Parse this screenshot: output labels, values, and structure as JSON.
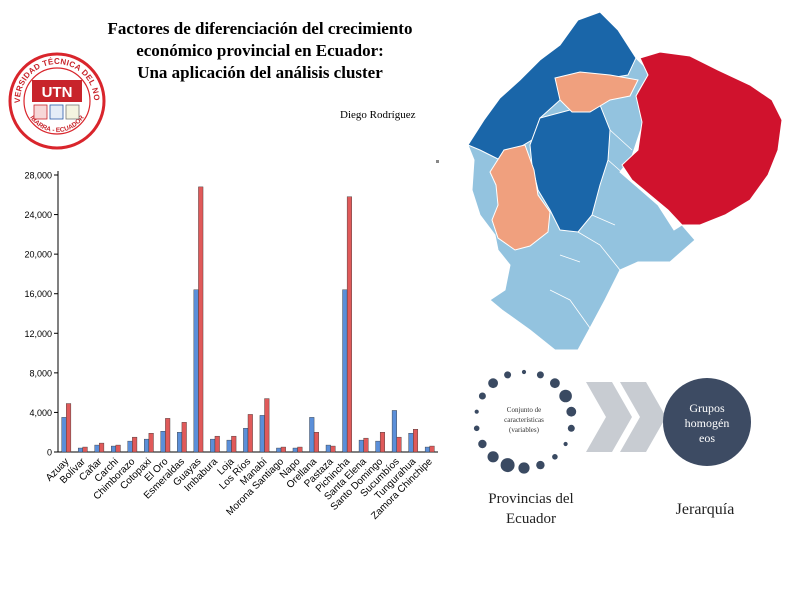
{
  "poster": {
    "title_lines": [
      "Factores de diferenciación del crecimiento",
      "económico provincial en Ecuador:",
      "Una aplicación del análisis cluster"
    ],
    "author": "Diego Rodríguez"
  },
  "logo": {
    "top_text": "UNIVERSIDAD TÉCNICA DEL NORTE",
    "badge": "UTN",
    "bottom_text": "IBARRA - ECUADOR",
    "colors": {
      "red": "#c8242b",
      "ring": "#d9252c"
    }
  },
  "chart_data": {
    "type": "bar",
    "categories": [
      "Azuay",
      "Bolívar",
      "Cañar",
      "Carchi",
      "Chimborazo",
      "Cotopaxi",
      "El Oro",
      "Esmeraldas",
      "Guayas",
      "Imbabura",
      "Loja",
      "Los Ríos",
      "Manabí",
      "Morona Santiago",
      "Napo",
      "Orellana",
      "Pastaza",
      "Pichincha",
      "Santa Elena",
      "Santo Domingo",
      "Sucumbíos",
      "Tungurahua",
      "Zamora Chinchipe"
    ],
    "series": [
      {
        "color": "#5b8fd9",
        "values": [
          3500,
          400,
          700,
          600,
          1100,
          1300,
          2100,
          2000,
          16400,
          1300,
          1200,
          2400,
          3700,
          400,
          400,
          3500,
          700,
          16400,
          1200,
          1100,
          4200,
          1900,
          500
        ]
      },
      {
        "color": "#e05a5a",
        "values": [
          4900,
          500,
          900,
          700,
          1500,
          1900,
          3400,
          3000,
          26800,
          1600,
          1600,
          3800,
          5400,
          500,
          500,
          2000,
          600,
          25800,
          1400,
          2000,
          1500,
          2300,
          600
        ]
      }
    ],
    "yticks": [
      "0",
      "4,000",
      "8,000",
      "12,000",
      "16,000",
      "20,000",
      "24,000",
      "28,000"
    ],
    "ylim": [
      0,
      28000
    ],
    "grid": false
  },
  "map": {
    "colors": {
      "dark_blue": "#1a66a9",
      "light_blue": "#93c3df",
      "salmon": "#f0a07e",
      "red": "#d0122d"
    }
  },
  "diagram": {
    "circle_text": [
      "Conjunto de",
      "características",
      "(variables)"
    ],
    "left_label": [
      "Provincias del",
      "Ecuador"
    ],
    "right_circle": [
      "Grupos",
      "homogén",
      "eos"
    ],
    "right_label": "Jerarquía",
    "colors": {
      "dots": "#3a4a62",
      "arrows": "#c8ccd2",
      "circle": "#3d4b63"
    }
  }
}
